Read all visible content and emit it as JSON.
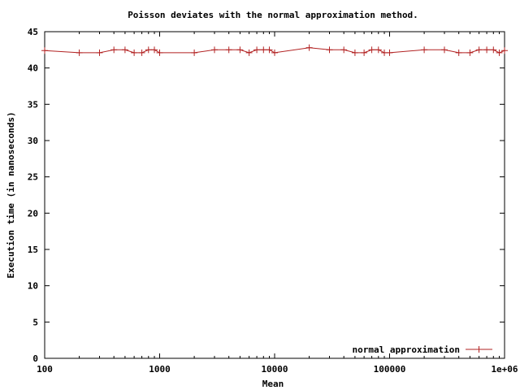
{
  "chart_data": {
    "type": "line",
    "title": "Poisson deviates with the normal approximation method.",
    "xlabel": "Mean",
    "ylabel": "Execution time (in nanoseconds)",
    "x_scale": "log",
    "xlim": [
      100,
      1000000
    ],
    "ylim": [
      0,
      45
    ],
    "x_ticks": [
      100,
      1000,
      10000,
      100000,
      1000000
    ],
    "x_tick_labels": [
      "100",
      "1000",
      "10000",
      "100000",
      "1e+06"
    ],
    "y_ticks": [
      0,
      5,
      10,
      15,
      20,
      25,
      30,
      35,
      40,
      45
    ],
    "y_tick_labels": [
      "0",
      "5",
      "10",
      "15",
      "20",
      "25",
      "30",
      "35",
      "40",
      "45"
    ],
    "grid": false,
    "legend_position": "bottom-right",
    "series": [
      {
        "name": "normal approximation",
        "color": "#b22222",
        "marker": "plus",
        "x": [
          100,
          200,
          300,
          400,
          500,
          600,
          700,
          800,
          900,
          1000,
          2000,
          3000,
          4000,
          5000,
          6000,
          7000,
          8000,
          9000,
          10000,
          20000,
          30000,
          40000,
          50000,
          60000,
          70000,
          80000,
          90000,
          100000,
          200000,
          300000,
          400000,
          500000,
          600000,
          700000,
          800000,
          900000,
          1000000
        ],
        "y": [
          42.4,
          42.1,
          42.1,
          42.5,
          42.5,
          42.1,
          42.1,
          42.5,
          42.5,
          42.1,
          42.1,
          42.5,
          42.5,
          42.5,
          42.1,
          42.5,
          42.5,
          42.5,
          42.1,
          42.8,
          42.5,
          42.5,
          42.1,
          42.1,
          42.5,
          42.5,
          42.1,
          42.1,
          42.5,
          42.5,
          42.1,
          42.1,
          42.5,
          42.5,
          42.5,
          42.1,
          42.4
        ]
      }
    ]
  }
}
